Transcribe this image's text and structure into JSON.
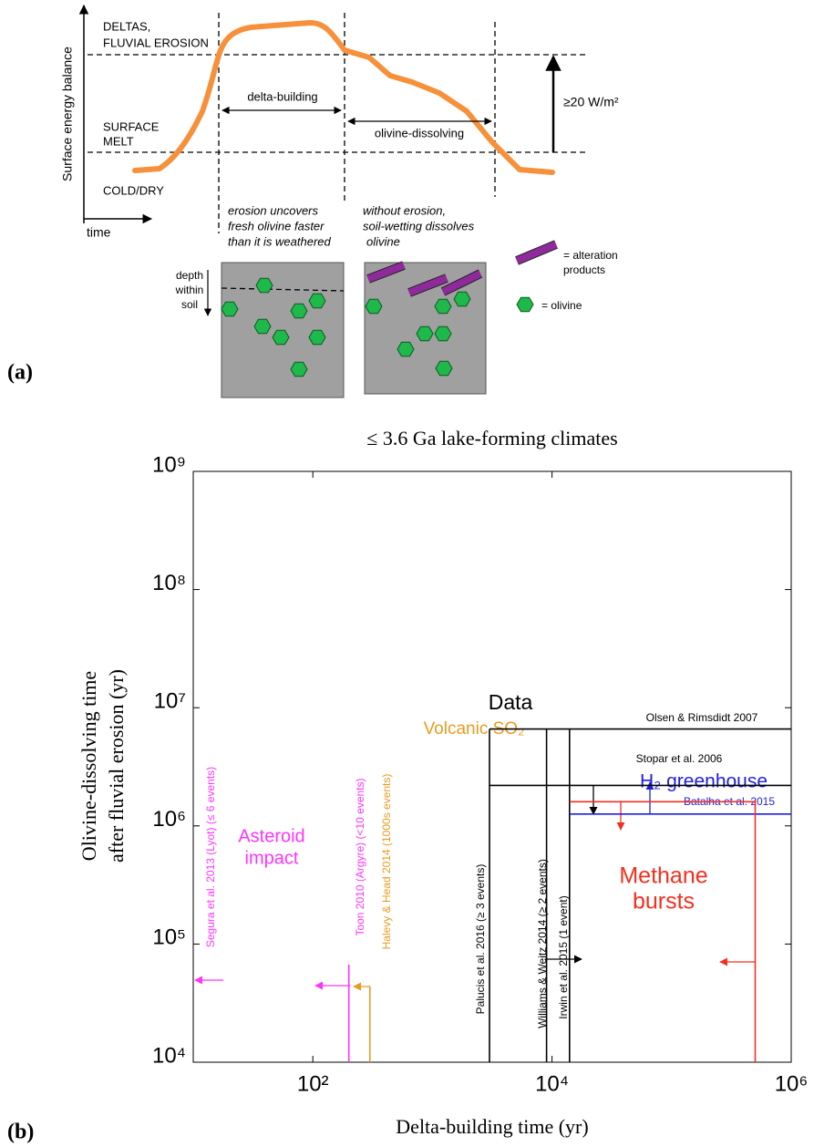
{
  "panel_a": {
    "label": "(a)",
    "y_axis": "Surface energy balance",
    "x_axis": "time",
    "levels": [
      "DELTAS,",
      "FLUVIAL EROSION",
      "SURFACE",
      "MELT",
      "COLD/DRY"
    ],
    "phases": [
      "delta-building",
      "olivine-dissolving"
    ],
    "gap": "≥20 W/m²",
    "notes": [
      [
        "erosion uncovers",
        "fresh olivine faster",
        "than it is weathered"
      ],
      [
        "without erosion,",
        "soil-wetting dissolves",
        "olivine"
      ]
    ],
    "depth": [
      "depth",
      "within",
      "soil"
    ],
    "legend": [
      [
        "= alteration",
        "products"
      ],
      "= olivine"
    ]
  },
  "panel_b_label": "(b)",
  "chart_data": {
    "type": "line",
    "title": "≤ 3.6 Ga lake-forming climates",
    "xlabel": "Delta-building time (yr)",
    "ylabel": [
      "Olivine-dissolving time",
      "after fluvial erosion (yr)"
    ],
    "log_x": true,
    "log_y": true,
    "xlim": [
      10,
      1000000
    ],
    "ylim": [
      10000,
      1000000000
    ],
    "xticks": [
      {
        "value": 100,
        "label": "10²"
      },
      {
        "value": 10000,
        "label": "10⁴"
      },
      {
        "value": 1000000,
        "label": "10⁶"
      }
    ],
    "yticks": [
      {
        "value": 10000,
        "label": "10⁴"
      },
      {
        "value": 100000,
        "label": "10⁵"
      },
      {
        "value": 1000000,
        "label": "10⁶"
      },
      {
        "value": 10000000,
        "label": "10⁷"
      },
      {
        "value": 100000000,
        "label": "10⁸"
      },
      {
        "value": 1000000000,
        "label": "10⁹"
      }
    ],
    "series": [
      {
        "name": "Olsen & Rimsdidt 2007",
        "color": "#000000",
        "x": [
          3000,
          1000000
        ],
        "values": [
          6600000,
          6600000
        ]
      },
      {
        "name": "Stopar et al. 2006",
        "color": "#000000",
        "x": [
          3000,
          1000000
        ],
        "values": [
          2200000,
          2200000
        ]
      },
      {
        "name": "Palucis et al. 2016 (≥ 3 events)",
        "color": "#000000",
        "x": [
          3000,
          3000
        ],
        "values": [
          10000,
          6600000
        ]
      },
      {
        "name": "Williams & Weitz 2014 (≥ 2 events)",
        "color": "#000000",
        "x": [
          9000,
          9000
        ],
        "values": [
          10000,
          6600000
        ]
      },
      {
        "name": "Irwin et al. 2015 (1 event)",
        "color": "#000000",
        "x": [
          14000,
          14000
        ],
        "values": [
          10000,
          6600000
        ]
      },
      {
        "name": "Batalha et al. 2015",
        "color": "#1f1fe0",
        "x": [
          14000,
          1000000
        ],
        "values": [
          1260000,
          1260000
        ]
      },
      {
        "color": "#f22f1f",
        "x": [
          14000,
          500000,
          500000
        ],
        "values": [
          1600000,
          1600000,
          10000
        ]
      },
      {
        "name": "Toon 2010 (Argyre) (<10 events)",
        "color": "#ff33ff",
        "x": [
          200,
          200
        ],
        "values": [
          10000,
          67000
        ]
      },
      {
        "name": "Halevy & Head 2014 (1000s events)",
        "color": "#e89b1e",
        "x": [
          300,
          300
        ],
        "values": [
          10000,
          44000
        ]
      }
    ],
    "annotations": {
      "data": "Data",
      "volcanic": "Volcanic SO₂",
      "asteroid": [
        "Asteroid",
        "impact"
      ],
      "h2": "H₂ greenhouse",
      "methane": [
        "Methane",
        "bursts"
      ],
      "segura": "Segura et al. 2013 (Lyot) (≤ 6 events)"
    }
  }
}
